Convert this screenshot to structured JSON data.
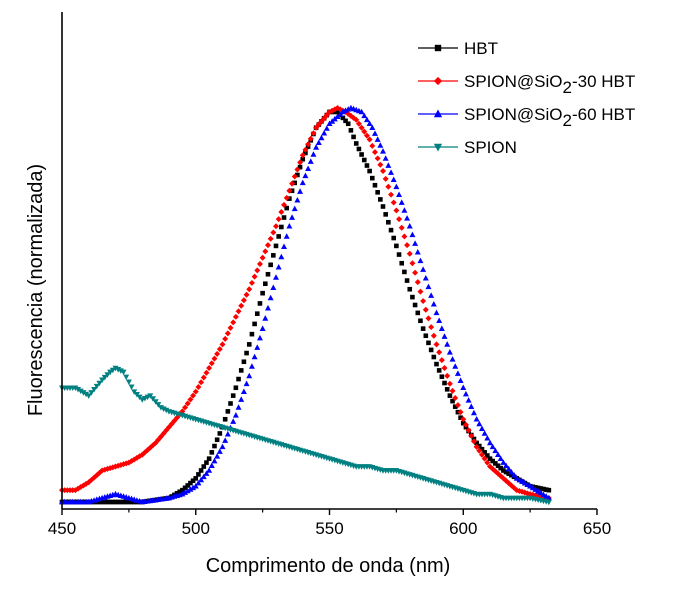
{
  "chart_data": {
    "type": "scatter",
    "xlabel": "Comprimento de onda (nm)",
    "ylabel": "Fluorescencia (normalizada)",
    "xlim": [
      450,
      650
    ],
    "ylim": [
      0,
      1.02
    ],
    "xticks": [
      450,
      500,
      550,
      600,
      650
    ],
    "yticks_shown": false,
    "grid": false,
    "legend_position": "top-right",
    "series": [
      {
        "name": "HBT",
        "legend_label": [
          "HBT",
          "",
          ""
        ],
        "color": "#000000",
        "marker": "square",
        "x": [
          450,
          470,
          480,
          490,
          495,
          500,
          505,
          510,
          515,
          520,
          525,
          530,
          535,
          540,
          545,
          550,
          553,
          557,
          560,
          565,
          570,
          575,
          580,
          585,
          590,
          595,
          600,
          605,
          610,
          615,
          620,
          625,
          632
        ],
        "y": [
          0.0,
          0.0,
          0.0,
          0.01,
          0.03,
          0.06,
          0.11,
          0.19,
          0.29,
          0.4,
          0.53,
          0.65,
          0.77,
          0.87,
          0.95,
          0.99,
          0.99,
          0.96,
          0.91,
          0.84,
          0.75,
          0.65,
          0.54,
          0.44,
          0.35,
          0.27,
          0.2,
          0.15,
          0.11,
          0.08,
          0.06,
          0.04,
          0.03
        ]
      },
      {
        "name": "SPION@SiO2-30 HBT",
        "legend_label": [
          "SPION@SiO",
          "2",
          "-30 HBT"
        ],
        "color": "#ff0000",
        "marker": "diamond",
        "x": [
          450,
          455,
          460,
          465,
          470,
          475,
          480,
          485,
          490,
          495,
          500,
          505,
          510,
          515,
          520,
          525,
          530,
          535,
          540,
          545,
          550,
          553,
          556,
          560,
          565,
          570,
          575,
          580,
          585,
          590,
          595,
          600,
          605,
          610,
          615,
          620,
          625,
          632
        ],
        "y": [
          0.03,
          0.03,
          0.05,
          0.08,
          0.09,
          0.1,
          0.12,
          0.15,
          0.19,
          0.23,
          0.28,
          0.34,
          0.4,
          0.47,
          0.54,
          0.62,
          0.7,
          0.79,
          0.88,
          0.95,
          0.99,
          1.0,
          0.99,
          0.97,
          0.92,
          0.84,
          0.74,
          0.63,
          0.51,
          0.4,
          0.3,
          0.21,
          0.14,
          0.09,
          0.06,
          0.03,
          0.02,
          0.01
        ]
      },
      {
        "name": "SPION@SiO2-60 HBT",
        "legend_label": [
          "SPION@SiO",
          "2",
          "-60 HBT"
        ],
        "color": "#0000ff",
        "marker": "triangle-up",
        "x": [
          450,
          460,
          465,
          470,
          475,
          480,
          490,
          495,
          500,
          505,
          510,
          515,
          520,
          525,
          530,
          535,
          540,
          545,
          550,
          555,
          558,
          562,
          566,
          570,
          575,
          580,
          585,
          590,
          595,
          600,
          605,
          610,
          615,
          620,
          625,
          632
        ],
        "y": [
          0.0,
          0.0,
          0.01,
          0.02,
          0.01,
          0.0,
          0.01,
          0.02,
          0.04,
          0.08,
          0.14,
          0.22,
          0.32,
          0.44,
          0.57,
          0.7,
          0.81,
          0.9,
          0.96,
          0.99,
          1.0,
          0.99,
          0.95,
          0.89,
          0.8,
          0.7,
          0.59,
          0.48,
          0.38,
          0.29,
          0.21,
          0.15,
          0.1,
          0.06,
          0.04,
          0.01
        ]
      },
      {
        "name": "SPION",
        "legend_label": [
          "SPION",
          "",
          ""
        ],
        "color": "#008080",
        "marker": "triangle-down",
        "x": [
          450,
          455,
          460,
          465,
          468,
          470,
          473,
          477,
          480,
          483,
          487,
          490,
          495,
          500,
          505,
          510,
          515,
          520,
          525,
          530,
          535,
          540,
          545,
          550,
          555,
          560,
          565,
          570,
          575,
          580,
          585,
          590,
          595,
          600,
          605,
          610,
          615,
          620,
          625,
          632
        ],
        "y": [
          0.29,
          0.29,
          0.27,
          0.31,
          0.33,
          0.34,
          0.33,
          0.28,
          0.26,
          0.27,
          0.24,
          0.23,
          0.22,
          0.21,
          0.2,
          0.19,
          0.18,
          0.17,
          0.16,
          0.15,
          0.14,
          0.13,
          0.12,
          0.11,
          0.1,
          0.09,
          0.09,
          0.08,
          0.08,
          0.07,
          0.06,
          0.05,
          0.04,
          0.03,
          0.02,
          0.02,
          0.01,
          0.01,
          0.01,
          0.0
        ]
      }
    ]
  }
}
